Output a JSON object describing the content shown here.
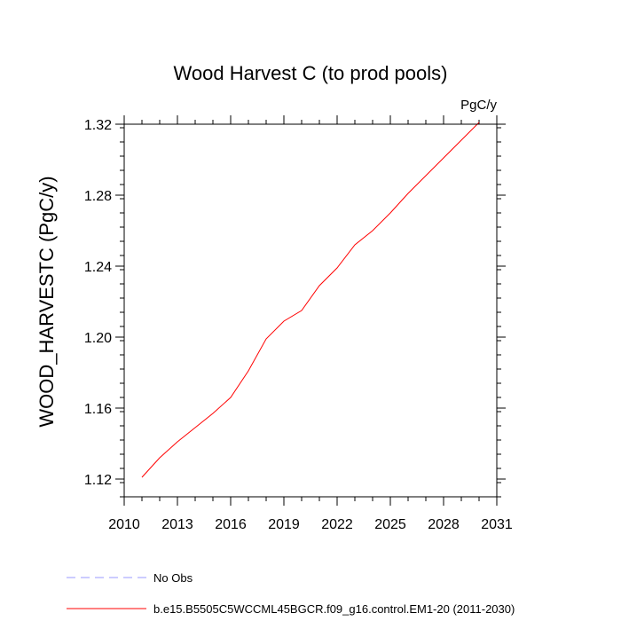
{
  "chart_data": {
    "type": "line",
    "title": "Wood Harvest C (to prod pools)",
    "units": "PgC/y",
    "ylabel": "WOOD_HARVESTC  (PgC/y)",
    "xlabel": "",
    "xlim": [
      2010,
      2031
    ],
    "ylim": [
      1.11,
      1.32
    ],
    "xticks": [
      2010,
      2013,
      2016,
      2019,
      2022,
      2025,
      2028,
      2031
    ],
    "xtick_labels": [
      "2010",
      "2013",
      "2016",
      "2019",
      "2022",
      "2025",
      "2028",
      "2031"
    ],
    "yticks": [
      1.12,
      1.16,
      1.2,
      1.24,
      1.28,
      1.32
    ],
    "ytick_labels": [
      "1.12",
      "1.16",
      "1.20",
      "1.24",
      "1.28",
      "1.32"
    ],
    "grid": false,
    "legend_position": "bottom",
    "series": [
      {
        "name": "b.e15.B5505C5WCCML45BGCR.f09_g16.control.EM1-20 (2011-2030)",
        "color": "#ff0000",
        "style": "solid",
        "x": [
          2011,
          2012,
          2013,
          2014,
          2015,
          2016,
          2017,
          2018,
          2019,
          2020,
          2021,
          2022,
          2023,
          2024,
          2025,
          2026,
          2027,
          2028,
          2029,
          2030
        ],
        "y": [
          1.121,
          1.132,
          1.141,
          1.149,
          1.157,
          1.166,
          1.181,
          1.199,
          1.209,
          1.215,
          1.229,
          1.239,
          1.252,
          1.26,
          1.27,
          1.281,
          1.291,
          1.301,
          1.311,
          1.321
        ]
      },
      {
        "name": "No Obs",
        "color": "#9999ff",
        "style": "dashed",
        "x": [],
        "y": []
      }
    ]
  }
}
